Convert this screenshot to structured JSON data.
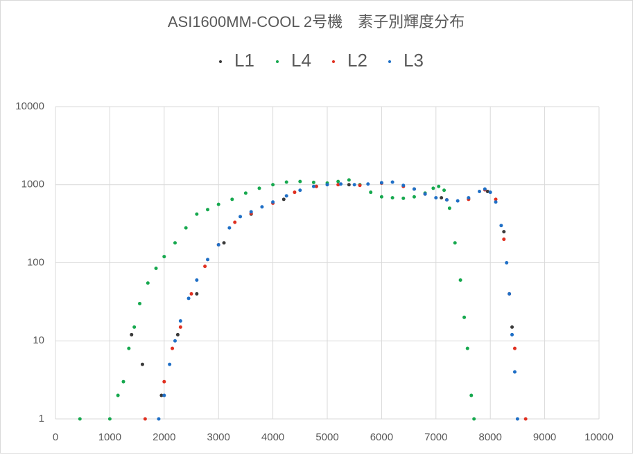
{
  "chart_data": {
    "type": "scatter",
    "title": "ASI1600MM-COOL 2号機　素子別輝度分布",
    "log_y": true,
    "grid": true,
    "legend": "top",
    "xlim": [
      0,
      10000
    ],
    "xticks": [
      0,
      1000,
      2000,
      3000,
      4000,
      5000,
      6000,
      7000,
      8000,
      9000,
      10000
    ],
    "ylim": [
      1,
      10000
    ],
    "yticks": [
      1,
      10,
      100,
      1000,
      10000
    ],
    "series": [
      {
        "name": "L1",
        "color": "#3a3a3a",
        "x": [
          1400,
          1600,
          1950,
          2250,
          2600,
          3100,
          3600,
          4200,
          4800,
          5400,
          6000,
          6600,
          7100,
          7600,
          7950,
          8250,
          8400
        ],
        "values": [
          12,
          5,
          2,
          12,
          40,
          180,
          420,
          650,
          950,
          1000,
          1050,
          880,
          680,
          660,
          820,
          250,
          15
        ]
      },
      {
        "name": "L4",
        "color": "#16a84e",
        "x": [
          450,
          1000,
          1150,
          1250,
          1350,
          1450,
          1550,
          1700,
          1850,
          2000,
          2200,
          2400,
          2600,
          2800,
          3000,
          3250,
          3500,
          3750,
          4000,
          4250,
          4500,
          4750,
          5000,
          5200,
          5400,
          5600,
          5800,
          6000,
          6200,
          6400,
          6600,
          6800,
          6950,
          7050,
          7150,
          7250,
          7350,
          7450,
          7520,
          7580,
          7650,
          7700
        ],
        "values": [
          1,
          1,
          2,
          3,
          8,
          15,
          30,
          55,
          85,
          120,
          180,
          280,
          420,
          480,
          560,
          650,
          780,
          900,
          1000,
          1080,
          1100,
          1070,
          1050,
          1100,
          1150,
          1000,
          800,
          700,
          680,
          670,
          700,
          780,
          900,
          950,
          850,
          500,
          180,
          60,
          20,
          8,
          2,
          1
        ]
      },
      {
        "name": "L2",
        "color": "#e03020",
        "x": [
          1650,
          2000,
          2150,
          2300,
          2500,
          2750,
          3000,
          3300,
          3600,
          4000,
          4400,
          4800,
          5200,
          5600,
          6000,
          6400,
          6800,
          7200,
          7600,
          7900,
          8100,
          8250,
          8350,
          8450,
          8650
        ],
        "values": [
          1,
          3,
          8,
          15,
          40,
          90,
          170,
          330,
          430,
          580,
          800,
          950,
          1000,
          980,
          1050,
          950,
          760,
          640,
          650,
          860,
          650,
          200,
          40,
          8,
          1
        ]
      },
      {
        "name": "L3",
        "color": "#1f6fc6",
        "x": [
          1900,
          2000,
          2100,
          2200,
          2300,
          2450,
          2600,
          2800,
          3000,
          3200,
          3400,
          3600,
          3800,
          4000,
          4250,
          4500,
          4750,
          5000,
          5250,
          5500,
          5750,
          6000,
          6200,
          6400,
          6600,
          6800,
          7000,
          7200,
          7400,
          7600,
          7800,
          7900,
          8000,
          8100,
          8200,
          8300,
          8350,
          8400,
          8450,
          8500
        ],
        "values": [
          1,
          2,
          5,
          10,
          18,
          35,
          60,
          110,
          170,
          280,
          390,
          450,
          520,
          600,
          720,
          850,
          950,
          1000,
          1020,
          1000,
          1020,
          1060,
          1080,
          980,
          880,
          760,
          680,
          640,
          620,
          680,
          820,
          880,
          800,
          600,
          300,
          100,
          40,
          12,
          4,
          1
        ]
      }
    ]
  }
}
